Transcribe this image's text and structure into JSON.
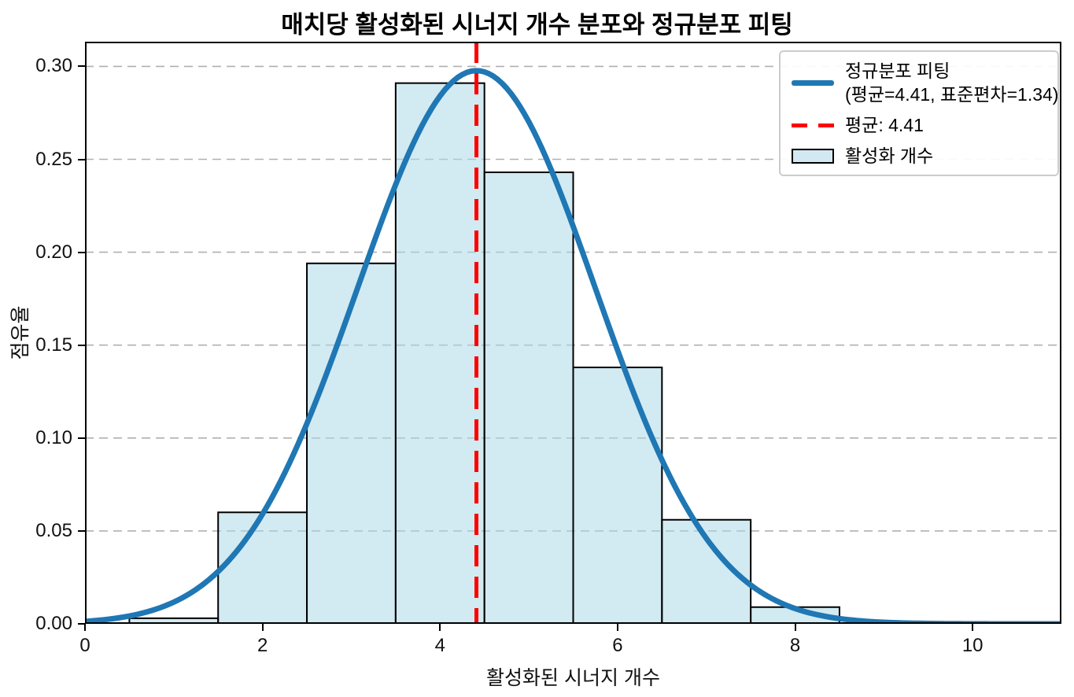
{
  "title": "매치당 활성화된 시너지 개수 분포와 정규분포 피팅",
  "x_axis": {
    "label": "활성화된 시너지 개수",
    "ticks": [
      0,
      2,
      4,
      6,
      8,
      10
    ],
    "range": [
      0,
      11
    ]
  },
  "y_axis": {
    "label": "점유율",
    "ticks": [
      0.0,
      0.05,
      0.1,
      0.15,
      0.2,
      0.25,
      0.3
    ],
    "range": [
      0,
      0.3133
    ]
  },
  "legend": {
    "items": [
      {
        "label_line1": "정규분포 피팅",
        "label_line2": "(평균=4.41, 표준편차=1.34)",
        "swatch": "line",
        "color": "#1f77b4"
      },
      {
        "label": "평균: 4.41",
        "swatch": "dashed-line",
        "color": "#ff0000"
      },
      {
        "label": "활성화 개수",
        "swatch": "patch",
        "color": "#d2e9f1"
      }
    ]
  },
  "colors": {
    "curve": "#1f77b4",
    "mean_line": "#ff0000",
    "bar_fill": "#add8e6",
    "bar_fill_opacity": 0.55,
    "bar_edge": "#000000",
    "grid": "#b0b0b0",
    "spine": "#000000",
    "legend_border": "#cccccc"
  },
  "chart_data": {
    "type": "bar",
    "subtype": "histogram_with_normal_fit",
    "title": "매치당 활성화된 시너지 개수 분포와 정규분포 피팅",
    "xlabel": "활성화된 시너지 개수",
    "ylabel": "점유율",
    "xlim": [
      0,
      11
    ],
    "ylim": [
      0,
      0.3133
    ],
    "xticks": [
      0,
      2,
      4,
      6,
      8,
      10
    ],
    "yticks": [
      0.0,
      0.05,
      0.1,
      0.15,
      0.2,
      0.25,
      0.3
    ],
    "grid": "horizontal-dashed",
    "legend_position": "upper right",
    "bins": {
      "centers": [
        1,
        2,
        3,
        4,
        5,
        6,
        7,
        8
      ],
      "width": 1,
      "heights": [
        0.003,
        0.06,
        0.194,
        0.291,
        0.243,
        0.138,
        0.056,
        0.009
      ]
    },
    "normal_fit": {
      "mean": 4.41,
      "std": 1.34,
      "peak": 0.298
    },
    "mean_line": {
      "x": 4.41
    }
  }
}
